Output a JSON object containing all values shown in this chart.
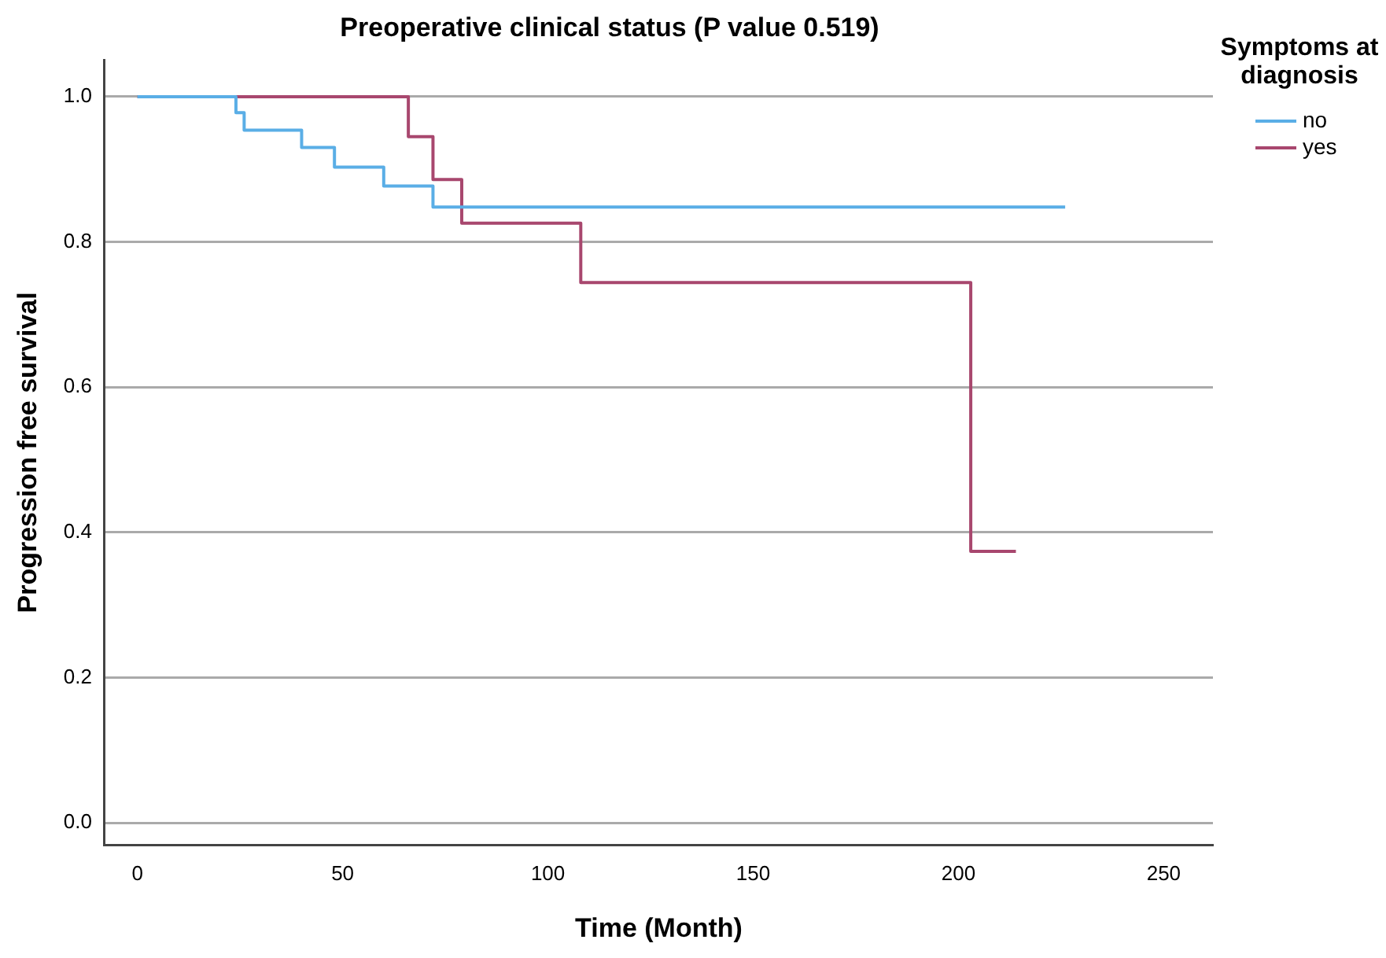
{
  "chart_data": {
    "type": "step",
    "title": "Preoperative clinical status (P value 0.519)",
    "xlabel": "Time (Month)",
    "ylabel": "Progression free survival",
    "legend_title": "Symptoms at diagnosis",
    "legend": "top right",
    "grid": "y",
    "marker": "none",
    "xlim": [
      -8,
      262
    ],
    "xticks": [
      0,
      50,
      100,
      150,
      200,
      250
    ],
    "ylim": [
      -0.03,
      1.05
    ],
    "yticks": [
      {
        "value": 0,
        "label": "0.0"
      },
      {
        "value": 0.2,
        "label": "0.2"
      },
      {
        "value": 0.4,
        "label": "0.4"
      },
      {
        "value": 0.6,
        "label": "0.6"
      },
      {
        "value": 0.8,
        "label": "0.8"
      },
      {
        "value": 1,
        "label": "1.0"
      }
    ],
    "series": [
      {
        "name": "no",
        "color": "#5aaee6",
        "x": [
          0,
          24,
          26,
          40,
          48,
          60,
          72,
          226
        ],
        "values": [
          1,
          0.978,
          0.954,
          0.93,
          0.903,
          0.877,
          0.848,
          0.848
        ]
      },
      {
        "name": "yes",
        "color": "#a8476e",
        "x": [
          0,
          66,
          72,
          79,
          108,
          203,
          214
        ],
        "values": [
          1,
          0.945,
          0.886,
          0.826,
          0.744,
          0.374,
          0.374
        ]
      }
    ]
  }
}
